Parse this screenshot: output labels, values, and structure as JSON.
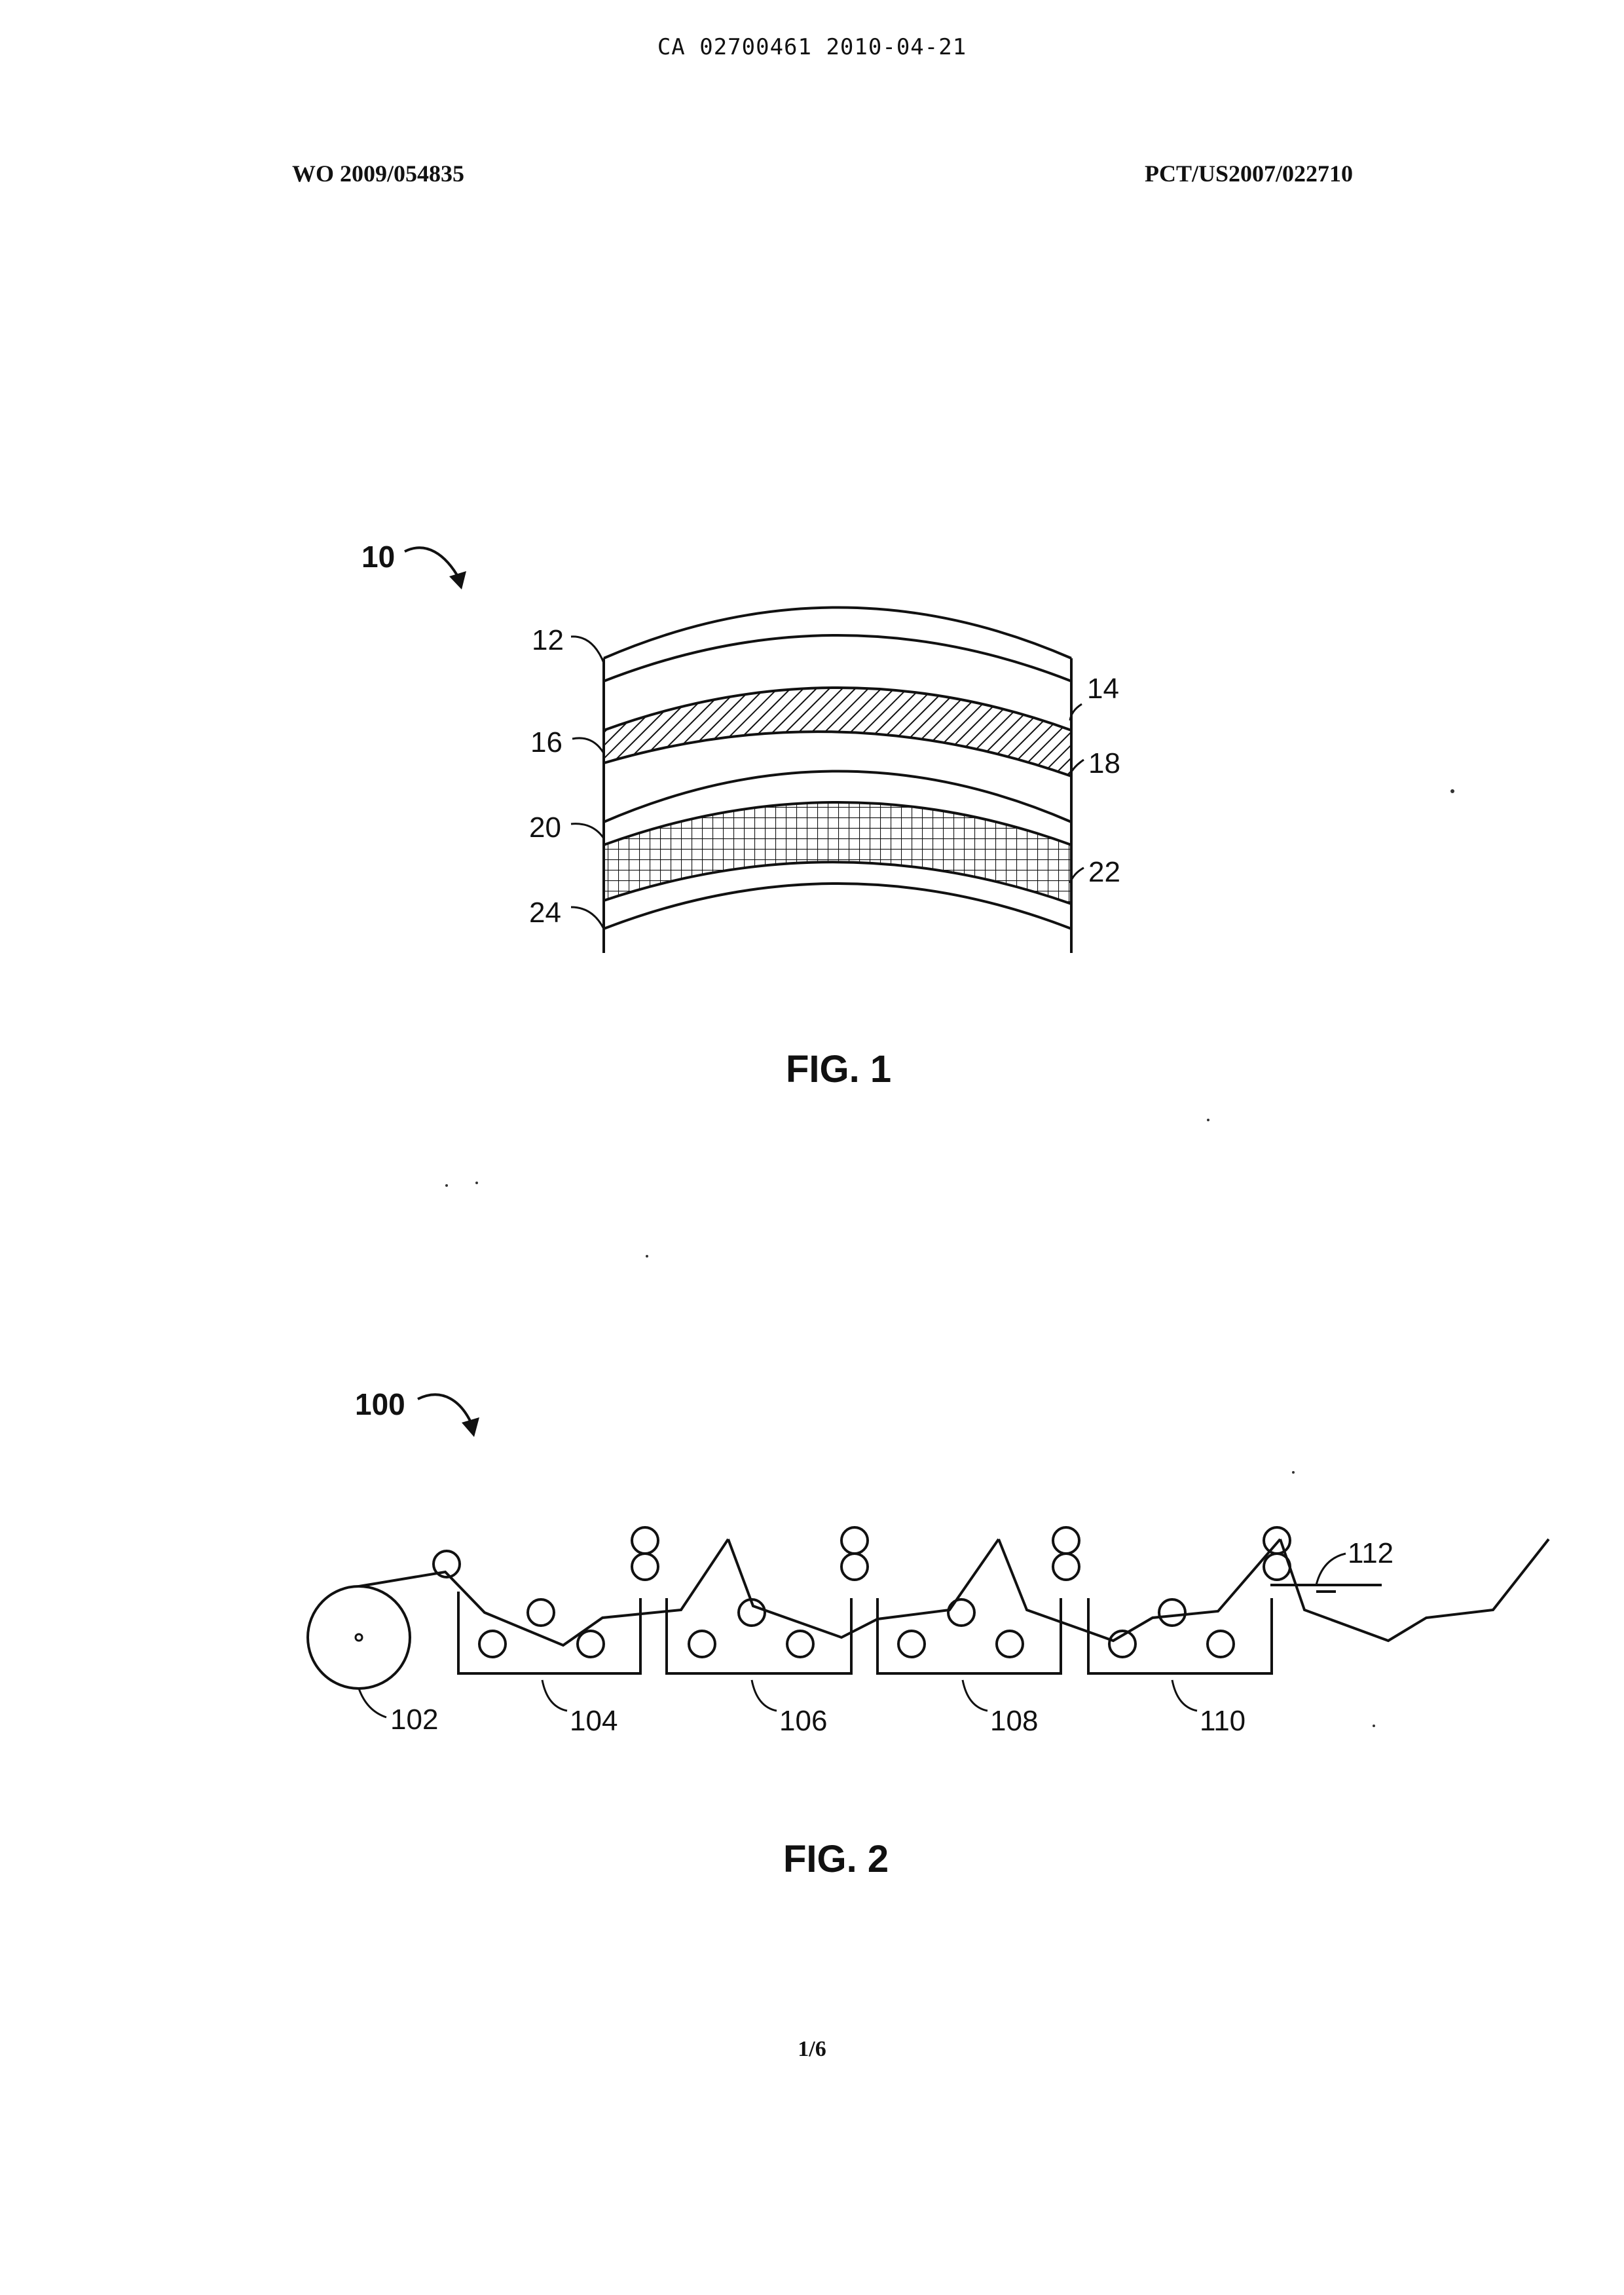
{
  "header": {
    "ca_number": "CA 02700461 2010-04-21",
    "wo_number": "WO 2009/054835",
    "pct_number": "PCT/US2007/022710"
  },
  "figure1": {
    "caption": "FIG. 1",
    "ref_main": "10",
    "labels": {
      "l12": "12",
      "l14": "14",
      "l16": "16",
      "l18": "18",
      "l20": "20",
      "l22": "22",
      "l24": "24"
    }
  },
  "figure2": {
    "caption": "FIG. 2",
    "ref_main": "100",
    "labels": {
      "l102": "102",
      "l104": "104",
      "l106": "106",
      "l108": "108",
      "l110": "110",
      "l112": "112"
    }
  },
  "footer": {
    "page": "1/6"
  }
}
